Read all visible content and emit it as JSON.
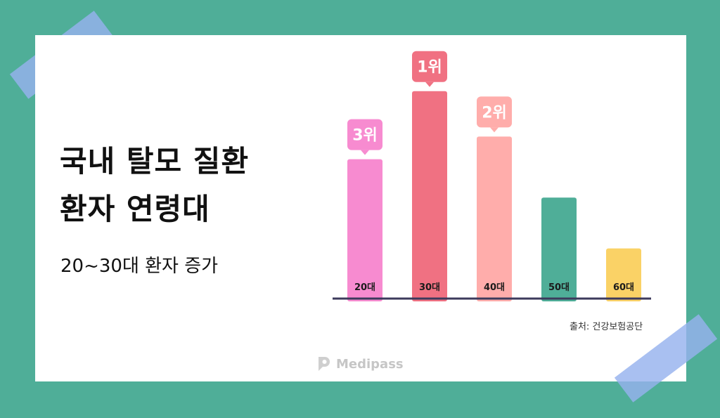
{
  "heading": {
    "line1": "국내 탈모 질환",
    "line2": "환자 연령대",
    "subtitle": "20~30대 환자 증가"
  },
  "source": "출처: 건강보험공단",
  "brand": {
    "name": "Medipass",
    "icon": "medipass-logo-icon"
  },
  "chart_data": {
    "type": "bar",
    "title": "",
    "xlabel": "",
    "ylabel": "",
    "categories": [
      "20대",
      "30대",
      "40대",
      "50대",
      "60대"
    ],
    "values": [
      178,
      265,
      207,
      129,
      64
    ],
    "ylim": [
      0,
      280
    ],
    "bar_colors": [
      "#f78bd0",
      "#f07182",
      "#ffadab",
      "#4fae98",
      "#fad266"
    ],
    "rank_badges": [
      {
        "category": "20대",
        "label": "3위",
        "color": "#f78bd0"
      },
      {
        "category": "30대",
        "label": "1위",
        "color": "#f07182"
      },
      {
        "category": "40대",
        "label": "2위",
        "color": "#ffadab"
      }
    ],
    "axis_color": "#3c3a5c",
    "grid": false
  },
  "decor": {
    "tape_color": "#96b2ee"
  }
}
